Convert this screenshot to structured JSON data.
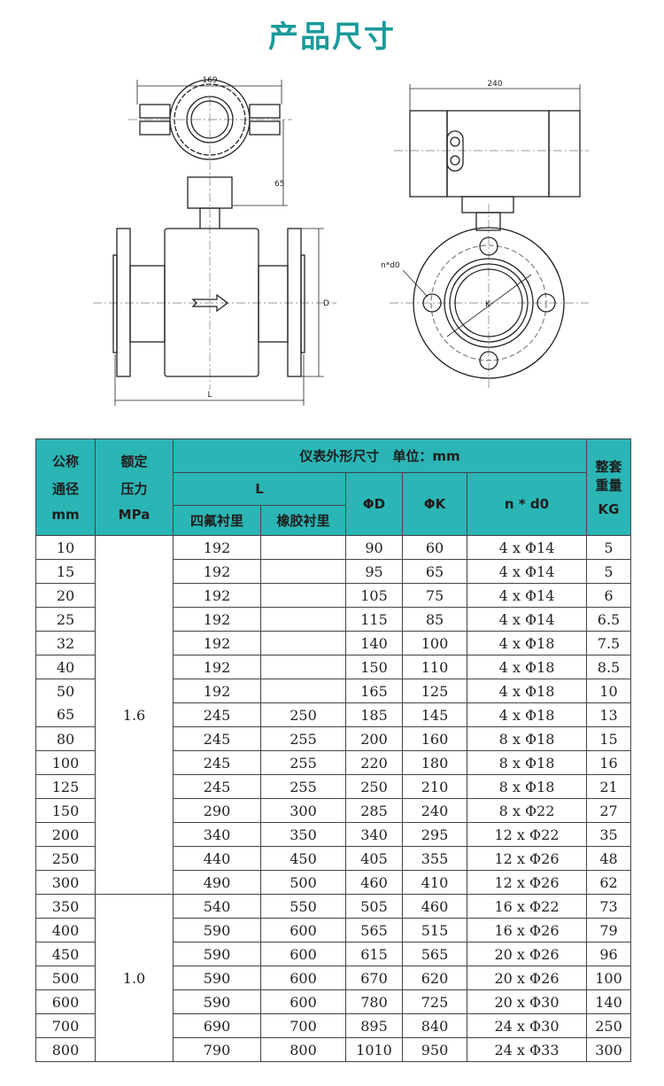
{
  "title": "产品尺寸",
  "drawing": {
    "width_label": "169",
    "height_label": "65",
    "d_label": "D",
    "l_label": "L",
    "box_label": "240",
    "bolt_label": "n*d0",
    "k_label": "K"
  },
  "table": {
    "header": {
      "dn": [
        "公称",
        "通径",
        "mm"
      ],
      "pressure": [
        "额定",
        "压力",
        "MPa"
      ],
      "dims": "仪表外形尺寸　单位：mm",
      "l": "L",
      "ptfe": "四氟衬里",
      "rubber": "橡胶衬里",
      "d": "ΦD",
      "k": "ΦK",
      "nd0": "n * d0",
      "weight": [
        "整套",
        "重量",
        "KG"
      ]
    },
    "pressure_groups": [
      {
        "value": "1.6"
      },
      {
        "value": "1.0"
      }
    ],
    "rows": [
      {
        "dn": "10",
        "ptfe": "192",
        "rubber": "",
        "d": "90",
        "k": "60",
        "nd0": "4 x Φ14",
        "kg": "5"
      },
      {
        "dn": "15",
        "ptfe": "192",
        "rubber": "",
        "d": "95",
        "k": "65",
        "nd0": "4 x Φ14",
        "kg": "5"
      },
      {
        "dn": "20",
        "ptfe": "192",
        "rubber": "",
        "d": "105",
        "k": "75",
        "nd0": "4 x Φ14",
        "kg": "6"
      },
      {
        "dn": "25",
        "ptfe": "192",
        "rubber": "",
        "d": "115",
        "k": "85",
        "nd0": "4 x Φ14",
        "kg": "6.5"
      },
      {
        "dn": "32",
        "ptfe": "192",
        "rubber": "",
        "d": "140",
        "k": "100",
        "nd0": "4 x Φ18",
        "kg": "7.5"
      },
      {
        "dn": "40",
        "ptfe": "192",
        "rubber": "",
        "d": "150",
        "k": "110",
        "nd0": "4 x Φ18",
        "kg": "8.5"
      },
      {
        "dn": "50",
        "ptfe": "192",
        "rubber": "",
        "d": "165",
        "k": "125",
        "nd0": "4 x Φ18",
        "kg": "10"
      },
      {
        "dn": "65",
        "ptfe": "245",
        "rubber": "250",
        "d": "185",
        "k": "145",
        "nd0": "4 x Φ18",
        "kg": "13"
      },
      {
        "dn": "80",
        "ptfe": "245",
        "rubber": "255",
        "d": "200",
        "k": "160",
        "nd0": "8 x Φ18",
        "kg": "15"
      },
      {
        "dn": "100",
        "ptfe": "245",
        "rubber": "255",
        "d": "220",
        "k": "180",
        "nd0": "8 x Φ18",
        "kg": "16"
      },
      {
        "dn": "125",
        "ptfe": "245",
        "rubber": "255",
        "d": "250",
        "k": "210",
        "nd0": "8 x Φ18",
        "kg": "21"
      },
      {
        "dn": "150",
        "ptfe": "290",
        "rubber": "300",
        "d": "285",
        "k": "240",
        "nd0": "8 x Φ22",
        "kg": "27"
      },
      {
        "dn": "200",
        "ptfe": "340",
        "rubber": "350",
        "d": "340",
        "k": "295",
        "nd0": "12 x Φ22",
        "kg": "35"
      },
      {
        "dn": "250",
        "ptfe": "440",
        "rubber": "450",
        "d": "405",
        "k": "355",
        "nd0": "12 x Φ26",
        "kg": "48"
      },
      {
        "dn": "300",
        "ptfe": "490",
        "rubber": "500",
        "d": "460",
        "k": "410",
        "nd0": "12 x Φ26",
        "kg": "62"
      },
      {
        "dn": "350",
        "ptfe": "540",
        "rubber": "550",
        "d": "505",
        "k": "460",
        "nd0": "16 x Φ22",
        "kg": "73"
      },
      {
        "dn": "400",
        "ptfe": "590",
        "rubber": "600",
        "d": "565",
        "k": "515",
        "nd0": "16 x Φ26",
        "kg": "79"
      },
      {
        "dn": "450",
        "ptfe": "590",
        "rubber": "600",
        "d": "615",
        "k": "565",
        "nd0": "20 x Φ26",
        "kg": "96"
      },
      {
        "dn": "500",
        "ptfe": "590",
        "rubber": "600",
        "d": "670",
        "k": "620",
        "nd0": "20 x Φ26",
        "kg": "100"
      },
      {
        "dn": "600",
        "ptfe": "590",
        "rubber": "600",
        "d": "780",
        "k": "725",
        "nd0": "20 x Φ30",
        "kg": "140"
      },
      {
        "dn": "700",
        "ptfe": "690",
        "rubber": "700",
        "d": "895",
        "k": "840",
        "nd0": "24 x Φ30",
        "kg": "250"
      },
      {
        "dn": "800",
        "ptfe": "790",
        "rubber": "800",
        "d": "1010",
        "k": "950",
        "nd0": "24 x Φ33",
        "kg": "300"
      }
    ]
  }
}
